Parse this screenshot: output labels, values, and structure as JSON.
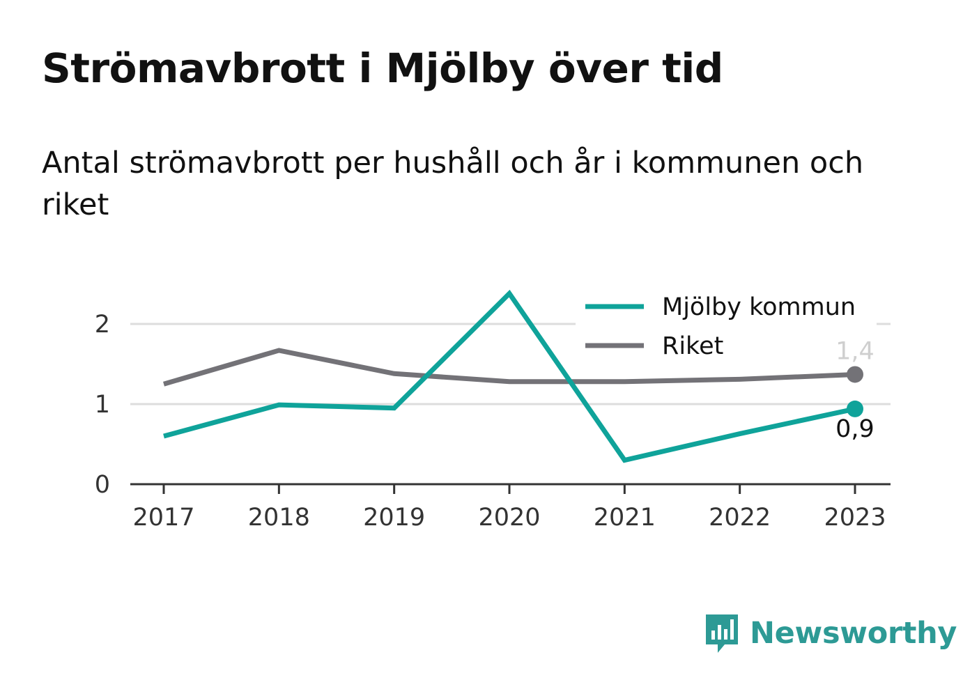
{
  "header": {
    "title": "Strömavbrott i Mjölby över tid",
    "subtitle": "Antal strömavbrott per hushåll och år i kommunen och riket"
  },
  "chart_data": {
    "type": "line",
    "x": [
      "2017",
      "2018",
      "2019",
      "2020",
      "2021",
      "2022",
      "2023"
    ],
    "y_ticks": [
      "0",
      "1",
      "2"
    ],
    "ylim": [
      0,
      2.5
    ],
    "grid": true,
    "legend_position": "top-right",
    "series": [
      {
        "name": "Mjölby kommun",
        "color": "#0fa39a",
        "values": [
          0.6,
          0.99,
          0.95,
          2.38,
          0.3,
          0.63,
          0.94
        ],
        "end_label": "0,9"
      },
      {
        "name": "Riket",
        "color": "#737277",
        "values": [
          1.25,
          1.67,
          1.38,
          1.28,
          1.28,
          1.31,
          1.37
        ],
        "end_label": "1,4"
      }
    ]
  },
  "brand": {
    "name": "Newsworthy",
    "color": "#2d9a95",
    "logo_icon": "bar-chart-speech-bubble-icon"
  }
}
